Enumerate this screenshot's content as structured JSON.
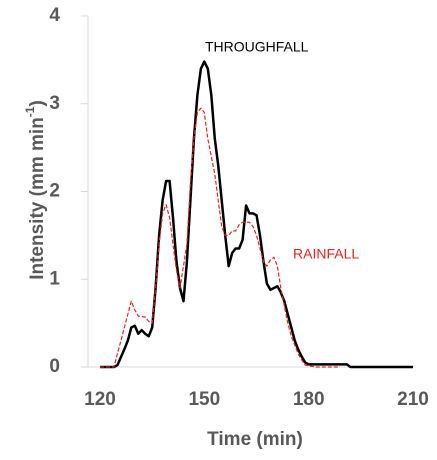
{
  "chart_data": {
    "type": "line",
    "ylabel": [
      "Intensity (mm min",
      "-1",
      ")"
    ],
    "xlabel": "Time (min)",
    "xlim": [
      120,
      210
    ],
    "xticks": [
      120,
      150,
      180,
      210
    ],
    "ylim": [
      0,
      4
    ],
    "yticks": [
      0,
      1,
      2,
      3,
      4
    ],
    "series": [
      {
        "name": "THROUGHFALL",
        "color": "#000000",
        "dashed": false,
        "x": [
          120,
          124,
          125,
          127,
          128,
          129,
          130,
          131,
          132,
          133,
          134,
          135,
          136,
          137,
          138,
          139,
          140,
          141,
          142,
          143,
          144,
          145,
          146,
          147,
          148,
          149,
          150,
          151,
          152,
          153,
          154,
          155,
          156,
          157,
          158,
          159,
          160,
          161,
          162,
          163,
          164,
          165,
          166,
          167,
          168,
          169,
          170,
          171,
          172,
          173,
          174,
          175,
          176,
          177,
          178,
          179,
          180,
          191,
          192,
          210
        ],
        "values": [
          0,
          0,
          0.02,
          0.2,
          0.3,
          0.45,
          0.47,
          0.38,
          0.42,
          0.38,
          0.35,
          0.45,
          0.9,
          1.5,
          1.9,
          2.12,
          2.12,
          1.7,
          1.2,
          0.9,
          0.75,
          1.2,
          1.9,
          2.6,
          3.1,
          3.4,
          3.48,
          3.4,
          3.1,
          2.6,
          2.3,
          1.9,
          1.5,
          1.15,
          1.3,
          1.35,
          1.35,
          1.45,
          1.84,
          1.75,
          1.75,
          1.73,
          1.5,
          1.2,
          0.95,
          0.88,
          0.9,
          0.92,
          0.85,
          0.75,
          0.6,
          0.45,
          0.3,
          0.2,
          0.12,
          0.05,
          0.03,
          0.03,
          0,
          0
        ]
      },
      {
        "name": "RAINFALL",
        "color": "#e8231f",
        "dashed": true,
        "x": [
          120,
          124,
          126,
          128,
          129,
          130,
          131,
          133,
          134,
          135,
          136,
          137,
          138,
          139,
          140,
          141,
          142,
          143,
          145,
          146,
          147,
          148,
          149,
          150,
          151,
          152,
          153,
          154,
          155,
          156,
          157,
          158,
          159,
          160,
          161,
          162,
          163,
          164,
          165,
          166,
          167,
          168,
          169,
          170,
          171,
          172,
          173,
          174,
          175,
          176,
          177,
          178,
          179,
          182,
          189
        ],
        "values": [
          0,
          0,
          0.3,
          0.6,
          0.75,
          0.65,
          0.58,
          0.57,
          0.52,
          0.5,
          0.9,
          1.4,
          1.75,
          1.85,
          1.7,
          1.4,
          1.1,
          0.9,
          1.4,
          2.1,
          2.6,
          2.9,
          2.95,
          2.9,
          2.6,
          2.4,
          2.2,
          1.9,
          1.6,
          1.5,
          1.5,
          1.55,
          1.55,
          1.62,
          1.65,
          1.65,
          1.65,
          1.6,
          1.5,
          1.35,
          1.2,
          1.15,
          1.22,
          1.25,
          1.15,
          0.9,
          0.7,
          0.5,
          0.35,
          0.25,
          0.15,
          0.08,
          0.02,
          0,
          0
        ]
      }
    ],
    "annotations": [
      {
        "text": "THROUGHFALL",
        "color": "#000000"
      },
      {
        "text": "RAINFALL",
        "color": "#e8231f"
      }
    ]
  }
}
